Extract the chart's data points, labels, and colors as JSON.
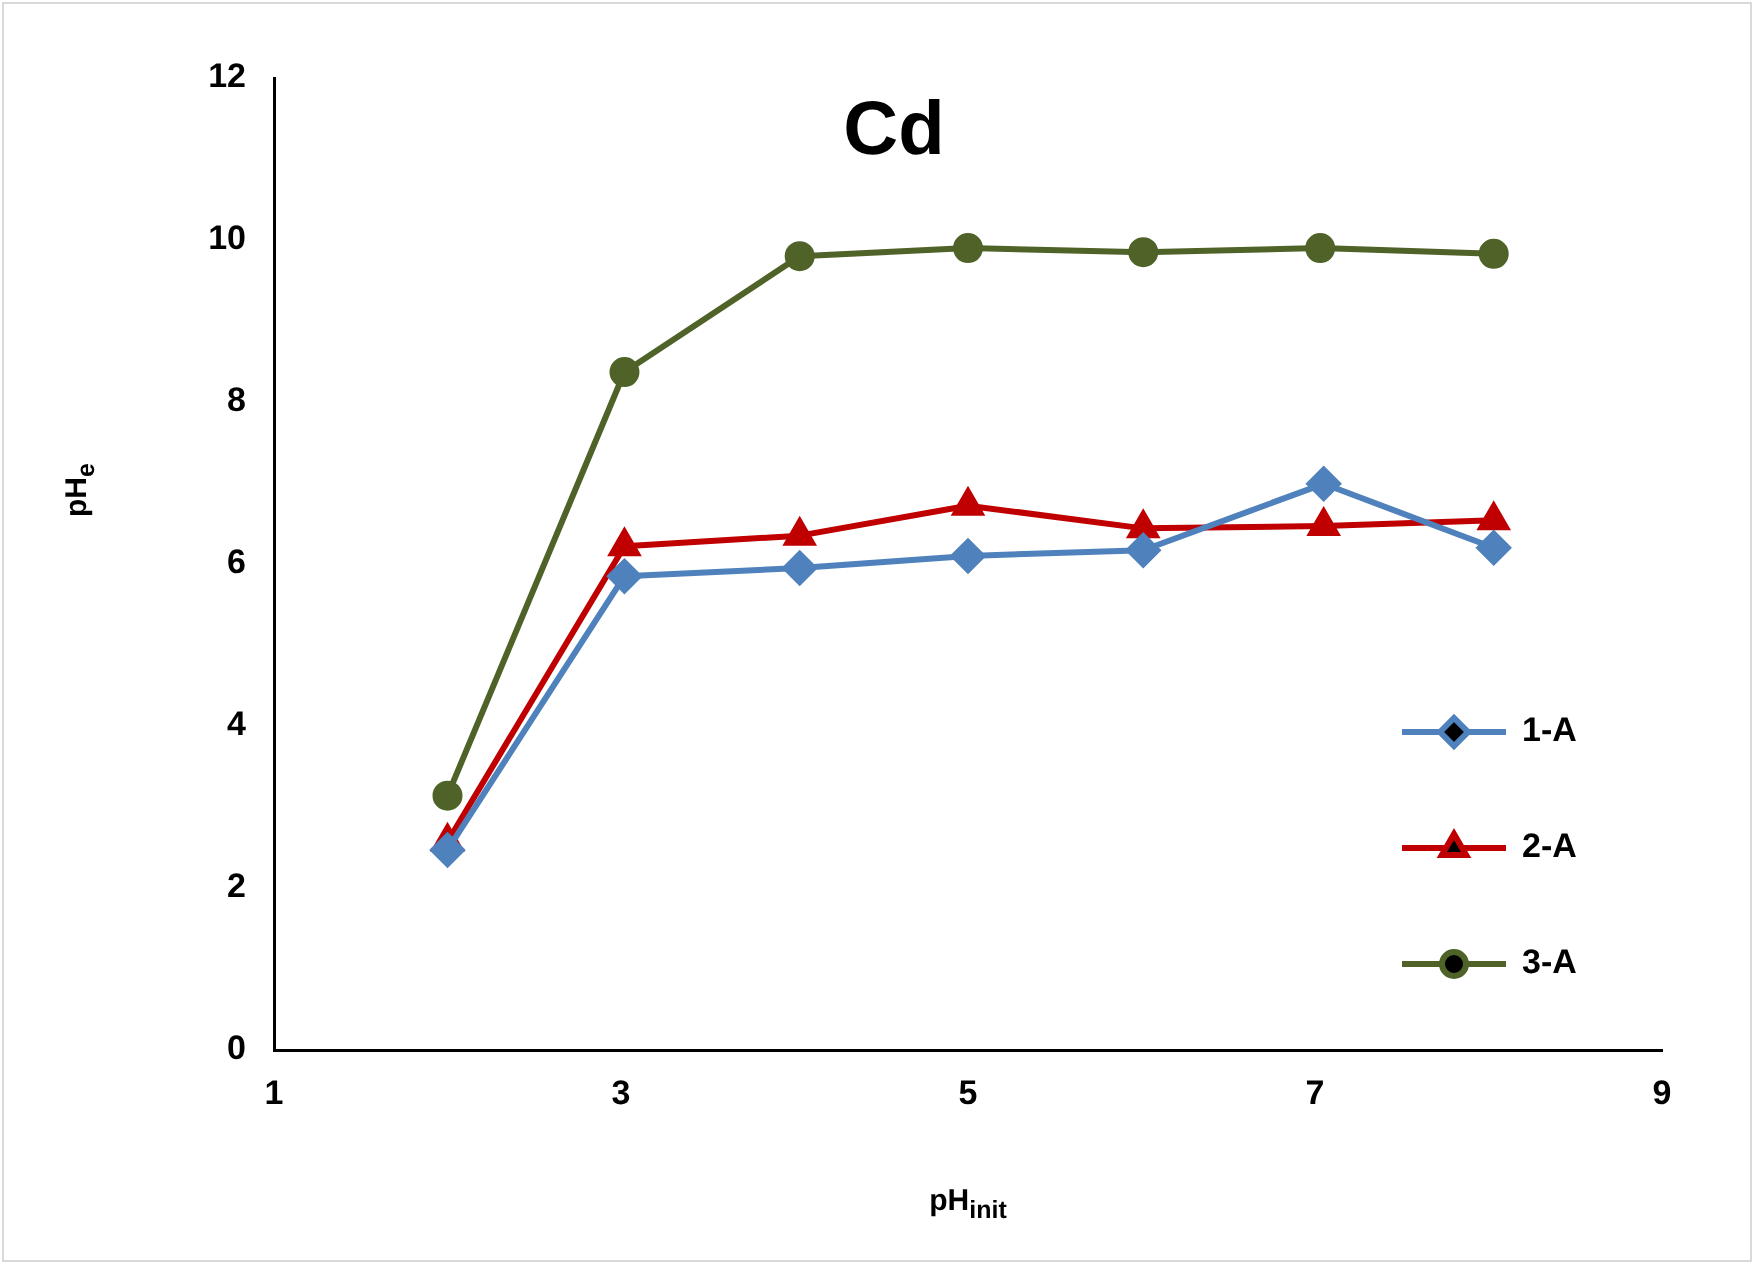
{
  "chart_data": {
    "type": "line",
    "title": "Cd",
    "xlabel": "pH$_{init}$",
    "ylabel": "pH$_{e}$",
    "xlim": [
      1,
      9
    ],
    "xticks": [
      1,
      3,
      5,
      7,
      9
    ],
    "ylim": [
      0,
      12
    ],
    "yticks": [
      0,
      2,
      4,
      6,
      8,
      10,
      12
    ],
    "grid": false,
    "legend": "bottom right",
    "line_style": "solid",
    "series": [
      {
        "name": "1-A",
        "color": "#4f81bd",
        "marker": "diamond",
        "x": [
          2,
          3.02,
          4.03,
          5,
          6.01,
          7.05,
          8.03
        ],
        "values": [
          2.47,
          5.85,
          5.95,
          6.1,
          6.17,
          6.99,
          6.2
        ]
      },
      {
        "name": "2-A",
        "color": "#c00000",
        "marker": "triangle",
        "x": [
          2,
          3.02,
          4.03,
          5,
          6.01,
          7.05,
          8.03
        ],
        "values": [
          2.57,
          6.22,
          6.35,
          6.72,
          6.44,
          6.47,
          6.54
        ]
      },
      {
        "name": "3-A",
        "color": "#4f6228",
        "marker": "circle",
        "x": [
          2,
          3.02,
          4.03,
          5,
          6.01,
          7.03,
          8.03
        ],
        "values": [
          3.14,
          8.37,
          9.8,
          9.9,
          9.85,
          9.9,
          9.83
        ]
      }
    ]
  }
}
